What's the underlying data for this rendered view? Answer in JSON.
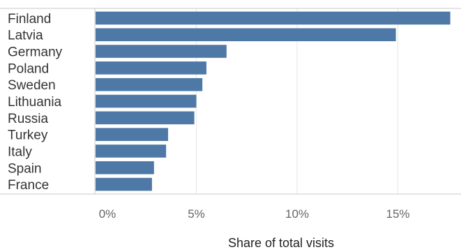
{
  "chart_data": {
    "type": "bar",
    "orientation": "horizontal",
    "categories": [
      "Finland",
      "Latvia",
      "Germany",
      "Poland",
      "Sweden",
      "Lithuania",
      "Russia",
      "Turkey",
      "Italy",
      "Spain",
      "France"
    ],
    "values": [
      17.6,
      14.9,
      6.5,
      5.5,
      5.3,
      5.0,
      4.9,
      3.6,
      3.5,
      2.9,
      2.8
    ],
    "value_unit": "%",
    "xlabel": "Share of total visits",
    "ylabel": "",
    "title": "",
    "xlim": [
      0,
      18
    ],
    "xticks": [
      0,
      5,
      10,
      15
    ],
    "xtick_labels": [
      "0%",
      "5%",
      "10%",
      "15%"
    ],
    "grid": "vertical",
    "legend": "none",
    "bar_color": "#4e79a7"
  }
}
